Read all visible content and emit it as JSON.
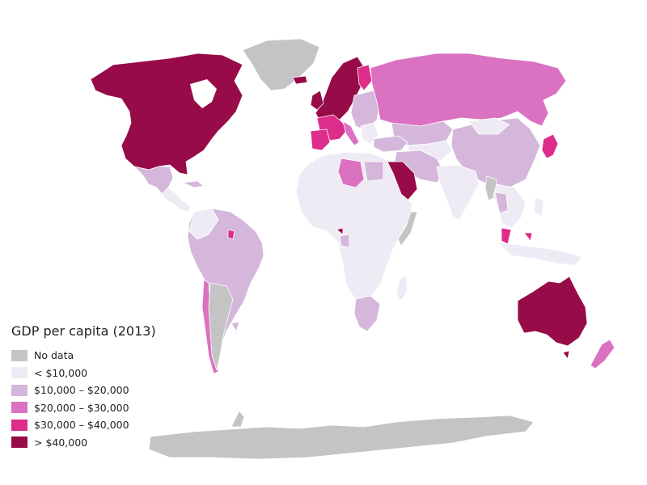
{
  "legend": {
    "title": "GDP per capita (2013)",
    "items": [
      {
        "label": "No data",
        "color": "#c4c4c4"
      },
      {
        "label": "< $10,000",
        "color": "#efebf4"
      },
      {
        "label": "$10,000 – $20,000",
        "color": "#d4b7da"
      },
      {
        "label": "$20,000 – $30,000",
        "color": "#db71c1"
      },
      {
        "label": "$30,000 – $40,000",
        "color": "#dd2c8a"
      },
      {
        "label": "> $40,000",
        "color": "#970b48"
      }
    ]
  }
}
